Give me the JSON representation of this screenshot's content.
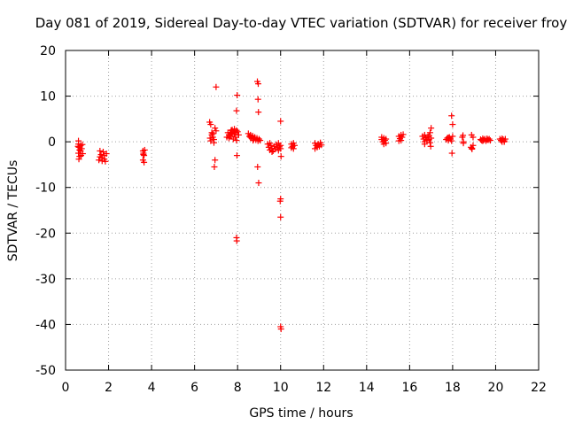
{
  "chart_data": {
    "type": "scatter",
    "title": "Day 081 of 2019, Sidereal Day-to-day VTEC variation (SDTVAR) for receiver froy",
    "xlabel": "GPS time / hours",
    "ylabel": "SDTVAR / TECUs",
    "xlim": [
      0,
      22
    ],
    "ylim": [
      -50,
      20
    ],
    "grid": true,
    "marker": "plus",
    "color": "#ff0000",
    "xticks": [
      0,
      2,
      4,
      6,
      8,
      10,
      12,
      14,
      16,
      18,
      20,
      22
    ],
    "yticks": [
      20,
      10,
      0,
      -10,
      -20,
      -30,
      -40,
      -50
    ],
    "series": [
      {
        "name": "SDTVAR",
        "points": [
          [
            0.6,
            0.2
          ],
          [
            0.6,
            -0.5
          ],
          [
            0.62,
            -1.2
          ],
          [
            0.65,
            -1.8
          ],
          [
            0.6,
            -2.5
          ],
          [
            0.65,
            -3.2
          ],
          [
            0.62,
            -3.8
          ],
          [
            0.7,
            -0.8
          ],
          [
            0.7,
            -2.0
          ],
          [
            0.72,
            -3.0
          ],
          [
            0.75,
            -1.5
          ],
          [
            0.78,
            -0.6
          ],
          [
            0.8,
            -2.6
          ],
          [
            0.58,
            -1.0
          ],
          [
            1.6,
            -2.0
          ],
          [
            1.65,
            -2.8
          ],
          [
            1.7,
            -3.5
          ],
          [
            1.7,
            -4.2
          ],
          [
            1.75,
            -2.2
          ],
          [
            1.8,
            -3.0
          ],
          [
            1.8,
            -3.8
          ],
          [
            1.85,
            -4.3
          ],
          [
            1.6,
            -3.3
          ],
          [
            1.9,
            -2.6
          ],
          [
            1.55,
            -4.0
          ],
          [
            3.6,
            -2.0
          ],
          [
            3.62,
            -2.5
          ],
          [
            3.65,
            -3.0
          ],
          [
            3.6,
            -4.0
          ],
          [
            3.65,
            -4.5
          ],
          [
            3.68,
            -1.8
          ],
          [
            3.62,
            -2.8
          ],
          [
            6.7,
            4.3
          ],
          [
            6.75,
            3.8
          ],
          [
            6.8,
            2.0
          ],
          [
            6.8,
            1.5
          ],
          [
            6.85,
            1.0
          ],
          [
            6.9,
            0.5
          ],
          [
            6.75,
            0.2
          ],
          [
            6.9,
            -0.2
          ],
          [
            6.85,
            1.8
          ],
          [
            6.72,
            0.8
          ],
          [
            6.95,
            3.0
          ],
          [
            7.0,
            2.4
          ],
          [
            7.0,
            12.0
          ],
          [
            6.95,
            -4.0
          ],
          [
            6.92,
            -5.5
          ],
          [
            7.5,
            1.0
          ],
          [
            7.6,
            1.5
          ],
          [
            7.65,
            2.0
          ],
          [
            7.7,
            1.2
          ],
          [
            7.7,
            2.5
          ],
          [
            7.75,
            1.8
          ],
          [
            7.8,
            2.2
          ],
          [
            7.85,
            1.6
          ],
          [
            7.9,
            2.0
          ],
          [
            7.9,
            1.0
          ],
          [
            7.95,
            2.5
          ],
          [
            8.0,
            2.2
          ],
          [
            7.55,
            2.0
          ],
          [
            7.6,
            0.8
          ],
          [
            7.8,
            0.6
          ],
          [
            7.95,
            0.3
          ],
          [
            7.98,
            10.2
          ],
          [
            7.95,
            6.8
          ],
          [
            7.97,
            -3.0
          ],
          [
            7.95,
            -21.0
          ],
          [
            7.96,
            -21.7
          ],
          [
            8.05,
            1.5
          ],
          [
            7.85,
            2.8
          ],
          [
            7.65,
            1.2
          ],
          [
            7.75,
            2.6
          ],
          [
            8.5,
            1.8
          ],
          [
            8.55,
            1.2
          ],
          [
            8.6,
            1.5
          ],
          [
            8.65,
            0.8
          ],
          [
            8.7,
            1.3
          ],
          [
            8.75,
            0.6
          ],
          [
            8.8,
            1.0
          ],
          [
            8.85,
            0.4
          ],
          [
            8.9,
            0.8
          ],
          [
            8.95,
            0.2
          ],
          [
            9.0,
            0.6
          ],
          [
            9.05,
            0.3
          ],
          [
            8.6,
            1.0
          ],
          [
            8.72,
            0.3
          ],
          [
            8.92,
            13.2
          ],
          [
            8.96,
            12.7
          ],
          [
            8.95,
            9.3
          ],
          [
            8.97,
            6.5
          ],
          [
            8.93,
            -5.5
          ],
          [
            8.98,
            -9.0
          ],
          [
            9.4,
            -0.5
          ],
          [
            9.45,
            -1.2
          ],
          [
            9.5,
            -1.8
          ],
          [
            9.55,
            -0.8
          ],
          [
            9.6,
            -1.5
          ],
          [
            9.65,
            -2.0
          ],
          [
            9.7,
            -1.0
          ],
          [
            9.75,
            -1.6
          ],
          [
            9.8,
            -0.6
          ],
          [
            9.85,
            -1.3
          ],
          [
            9.9,
            -1.9
          ],
          [
            9.95,
            -1.1
          ],
          [
            10.0,
            -0.8
          ],
          [
            10.0,
            -1.5
          ],
          [
            9.5,
            -0.3
          ],
          [
            9.6,
            -2.2
          ],
          [
            9.9,
            -0.3
          ],
          [
            10.0,
            4.5
          ],
          [
            10.02,
            -3.2
          ],
          [
            10.0,
            -12.5
          ],
          [
            9.98,
            -13.0
          ],
          [
            10.0,
            -16.5
          ],
          [
            10.0,
            -40.5
          ],
          [
            10.02,
            -41.0
          ],
          [
            10.5,
            -0.5
          ],
          [
            10.55,
            -1.0
          ],
          [
            10.6,
            -1.5
          ],
          [
            10.6,
            -0.3
          ],
          [
            10.65,
            -0.8
          ],
          [
            10.5,
            -1.3
          ],
          [
            11.6,
            -0.3
          ],
          [
            11.65,
            -0.8
          ],
          [
            11.7,
            -1.2
          ],
          [
            11.75,
            -0.5
          ],
          [
            11.8,
            -1.0
          ],
          [
            11.85,
            -0.2
          ],
          [
            11.6,
            -1.5
          ],
          [
            11.9,
            -0.7
          ],
          [
            14.7,
            0.5
          ],
          [
            14.75,
            0.0
          ],
          [
            14.8,
            -0.5
          ],
          [
            14.8,
            0.8
          ],
          [
            14.85,
            0.3
          ],
          [
            14.9,
            -0.3
          ],
          [
            14.7,
            1.0
          ],
          [
            14.9,
            0.6
          ],
          [
            15.5,
            1.2
          ],
          [
            15.55,
            0.7
          ],
          [
            15.6,
            1.5
          ],
          [
            15.6,
            0.3
          ],
          [
            15.65,
            1.0
          ],
          [
            15.5,
            0.2
          ],
          [
            15.7,
            1.6
          ],
          [
            16.6,
            1.2
          ],
          [
            16.65,
            0.6
          ],
          [
            16.7,
            0.0
          ],
          [
            16.7,
            1.5
          ],
          [
            16.75,
            0.9
          ],
          [
            16.8,
            0.3
          ],
          [
            16.85,
            1.1
          ],
          [
            16.9,
            0.5
          ],
          [
            16.95,
            -0.2
          ],
          [
            17.0,
            0.8
          ],
          [
            16.7,
            -0.5
          ],
          [
            16.9,
            1.4
          ],
          [
            17.0,
            3.0
          ],
          [
            16.95,
            2.0
          ],
          [
            16.98,
            -1.0
          ],
          [
            17.7,
            0.5
          ],
          [
            17.75,
            0.8
          ],
          [
            17.8,
            0.3
          ],
          [
            17.85,
            1.0
          ],
          [
            17.9,
            0.6
          ],
          [
            17.95,
            0.2
          ],
          [
            17.8,
            0.9
          ],
          [
            17.95,
            5.7
          ],
          [
            18.0,
            3.8
          ],
          [
            17.97,
            -2.5
          ],
          [
            18.0,
            1.2
          ],
          [
            18.45,
            1.0
          ],
          [
            18.5,
            0.0
          ],
          [
            18.5,
            -0.3
          ],
          [
            18.48,
            1.4
          ],
          [
            18.85,
            -1.2
          ],
          [
            18.9,
            -1.6
          ],
          [
            18.95,
            -0.8
          ],
          [
            18.95,
            1.0
          ],
          [
            18.9,
            -1.4
          ],
          [
            18.88,
            1.5
          ],
          [
            19.3,
            0.5
          ],
          [
            19.35,
            0.3
          ],
          [
            19.4,
            0.7
          ],
          [
            19.45,
            0.4
          ],
          [
            19.5,
            0.6
          ],
          [
            19.55,
            0.2
          ],
          [
            19.6,
            0.5
          ],
          [
            19.65,
            0.4
          ],
          [
            19.7,
            0.6
          ],
          [
            19.75,
            0.3
          ],
          [
            19.4,
            0.2
          ],
          [
            19.6,
            0.7
          ],
          [
            20.2,
            0.6
          ],
          [
            20.25,
            0.3
          ],
          [
            20.3,
            0.0
          ],
          [
            20.35,
            0.5
          ],
          [
            20.4,
            0.2
          ],
          [
            20.45,
            0.6
          ],
          [
            20.4,
            0.0
          ],
          [
            20.3,
            0.7
          ]
        ]
      }
    ]
  }
}
